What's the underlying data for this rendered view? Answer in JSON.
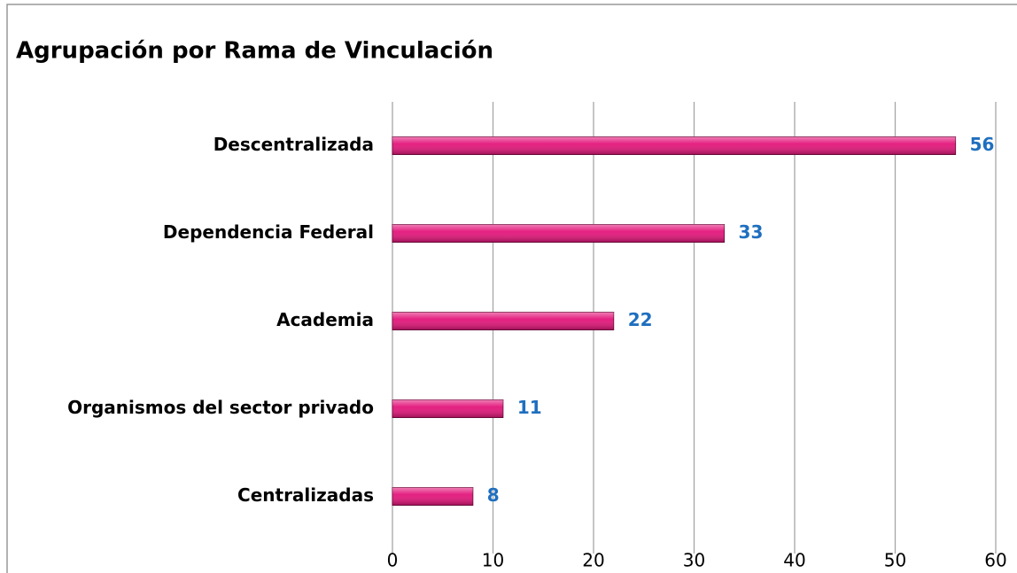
{
  "chart_data": {
    "type": "bar",
    "orientation": "horizontal",
    "title": "Agrupación por Rama de Vinculación",
    "categories": [
      "Descentralizada",
      "Dependencia Federal",
      "Academia",
      "Organismos del sector privado",
      "Centralizadas"
    ],
    "values": [
      56,
      33,
      22,
      11,
      8
    ],
    "color": "#e3157a",
    "label_color": "#1f6fbf",
    "xlim": [
      0,
      60
    ],
    "xticks": [
      0,
      10,
      20,
      30,
      40,
      50,
      60
    ],
    "grid": true
  }
}
